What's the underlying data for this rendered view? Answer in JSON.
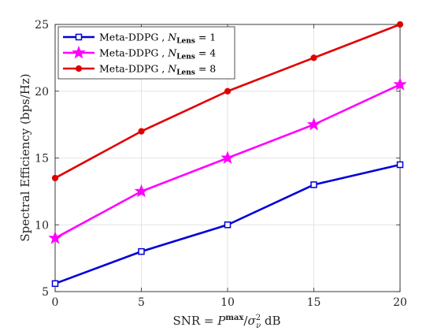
{
  "chart_data": {
    "type": "line",
    "x": [
      0,
      5,
      10,
      15,
      20
    ],
    "xlim": [
      0,
      20
    ],
    "ylim": [
      5,
      25
    ],
    "xticks": [
      "0",
      "5",
      "10",
      "15",
      "20"
    ],
    "yticks": [
      "5",
      "10",
      "15",
      "20",
      "25"
    ],
    "xlabel": "SNR = P^max/σ_ν^2 dB",
    "ylabel": "Spectral Efficiency (bps/Hz)",
    "grid": true,
    "legend_position": "top-left",
    "series": [
      {
        "name": "Meta-DDPG , N_Lens = 1",
        "label_main": "Meta-DDPG ,",
        "label_sub": "Lens",
        "label_value": "= 1",
        "values": [
          5.6,
          8.0,
          10.0,
          13.0,
          14.5
        ],
        "color": "#0000d8",
        "marker": "square"
      },
      {
        "name": "Meta-DDPG , N_Lens = 4",
        "label_main": "Meta-DDPG ,",
        "label_sub": "Lens",
        "label_value": "= 4",
        "values": [
          9.0,
          12.5,
          15.0,
          17.5,
          20.5
        ],
        "color": "#ff00ff",
        "marker": "star"
      },
      {
        "name": "Meta-DDPG , N_Lens = 8",
        "label_main": "Meta-DDPG ,",
        "label_sub": "Lens",
        "label_value": "= 8",
        "values": [
          13.5,
          17.0,
          20.0,
          22.5,
          25.0
        ],
        "color": "#e00000",
        "marker": "circle"
      }
    ]
  }
}
